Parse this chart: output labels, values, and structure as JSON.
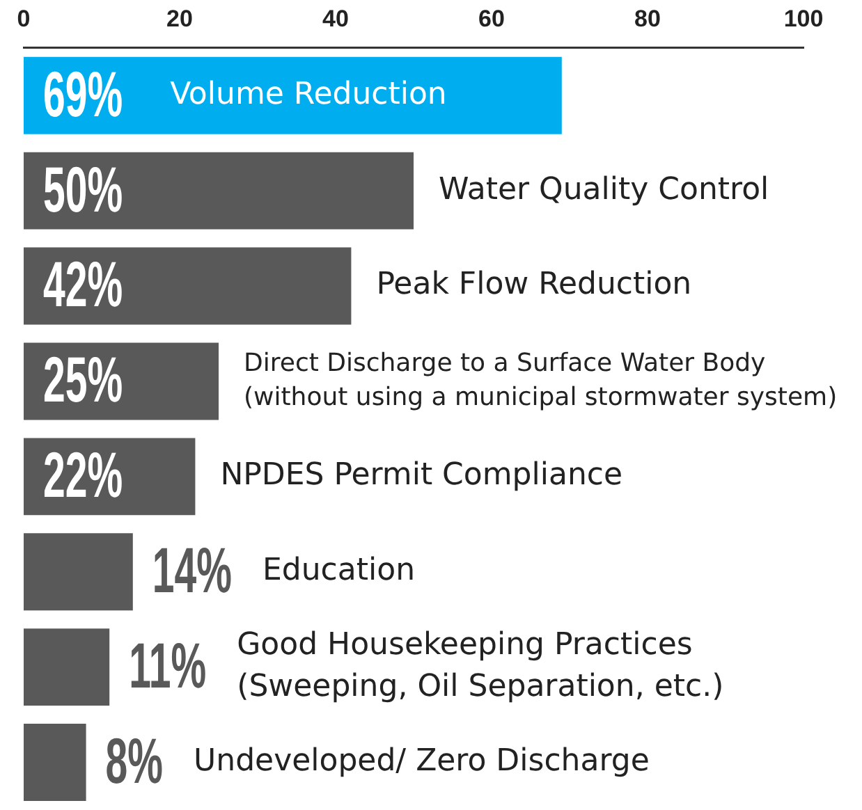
{
  "chart_data": {
    "type": "bar",
    "orientation": "horizontal",
    "categories": [
      "Volume Reduction",
      "Water Quality Control",
      "Peak Flow Reduction",
      "Direct Discharge to a Surface Water Body (without using a municipal stormwater system)",
      "NPDES Permit Compliance",
      "Education",
      "Good Housekeeping Practices (Sweeping, Oil Separation, etc.)",
      "Undeveloped/ Zero Discharge"
    ],
    "values": [
      69,
      50,
      42,
      25,
      22,
      14,
      11,
      8
    ],
    "colors": [
      "#00aeef",
      "#595959",
      "#595959",
      "#595959",
      "#595959",
      "#595959",
      "#595959",
      "#595959"
    ],
    "value_labels": [
      "69%",
      "50%",
      "42%",
      "25%",
      "22%",
      "14%",
      "11%",
      "8%"
    ],
    "xlim": [
      0,
      100
    ],
    "xticks": [
      0,
      20,
      40,
      60,
      80,
      100
    ],
    "grid": false,
    "legend": false
  }
}
